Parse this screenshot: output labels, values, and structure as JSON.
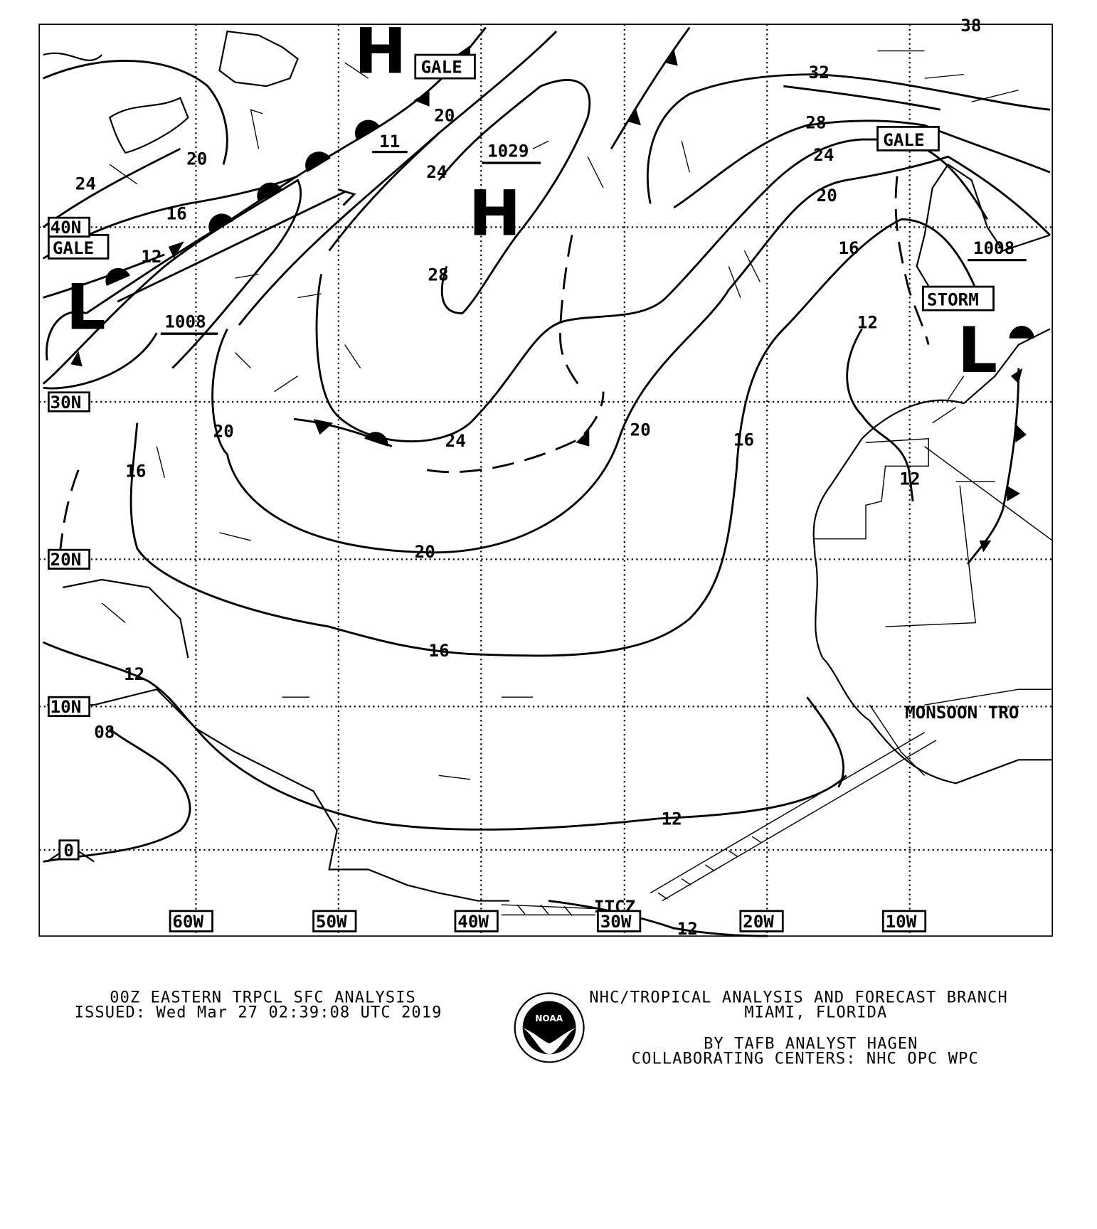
{
  "map": {
    "colors": {
      "ink": "#000000",
      "background": "#ffffff"
    },
    "lat_labels": [
      "40N",
      "30N",
      "20N",
      "10N",
      "0"
    ],
    "lon_labels": [
      "60W",
      "50W",
      "40W",
      "30W",
      "20W",
      "10W"
    ],
    "pressure_centers": [
      {
        "type": "H",
        "value": ""
      },
      {
        "type": "H",
        "value": "1029"
      },
      {
        "type": "L",
        "value": "1008"
      },
      {
        "type": "L",
        "value": "1008"
      },
      {
        "type": "",
        "value": "11"
      }
    ],
    "warnings": [
      "GALE",
      "GALE",
      "GALE",
      "STORM"
    ],
    "features": [
      "ITCZ",
      "MONSOON TRO"
    ],
    "isobar_labels": [
      "32",
      "28",
      "24",
      "20",
      "16",
      "12",
      "20",
      "24",
      "16",
      "12",
      "20",
      "24",
      "28",
      "20",
      "24",
      "20",
      "16",
      "20",
      "16",
      "12",
      "12",
      "16",
      "12",
      "08",
      "12",
      "12",
      "38"
    ]
  },
  "footer": {
    "title": "00Z EASTERN TRPCL SFC ANALYSIS",
    "issued": "ISSUED: Wed Mar 27 02:39:08 UTC 2019",
    "org": "NHC/TROPICAL ANALYSIS AND FORECAST BRANCH",
    "location": "MIAMI,  FLORIDA",
    "analyst": "BY TAFB ANALYST  HAGEN",
    "collab": "COLLABORATING CENTERS: NHC OPC WPC",
    "logo_text": "NOAA"
  }
}
